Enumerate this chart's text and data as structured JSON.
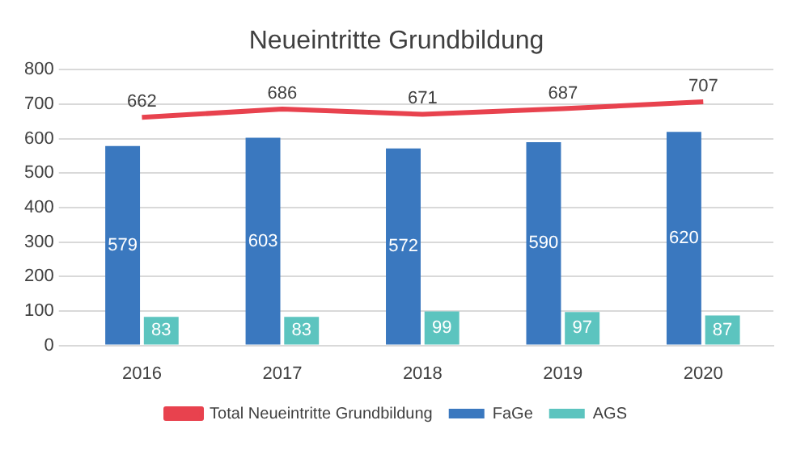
{
  "chart_data": {
    "type": "bar",
    "title": "Neueintritte Grundbildung",
    "categories": [
      "2016",
      "2017",
      "2018",
      "2019",
      "2020"
    ],
    "series": [
      {
        "name": "FaGe",
        "color": "#3a78bf",
        "values": [
          579,
          603,
          572,
          590,
          620
        ]
      },
      {
        "name": "AGS",
        "color": "#5cc4bf",
        "values": [
          83,
          83,
          99,
          97,
          87
        ]
      },
      {
        "name": "Total Neueintritte Grundbildung",
        "type": "line",
        "color": "#e8424e",
        "values": [
          662,
          686,
          671,
          687,
          707
        ]
      }
    ],
    "ylim": [
      0,
      800
    ],
    "yticks": [
      0,
      100,
      200,
      300,
      400,
      500,
      600,
      700,
      800
    ],
    "grid": "y",
    "legend": "bottom",
    "data_labels": true
  }
}
